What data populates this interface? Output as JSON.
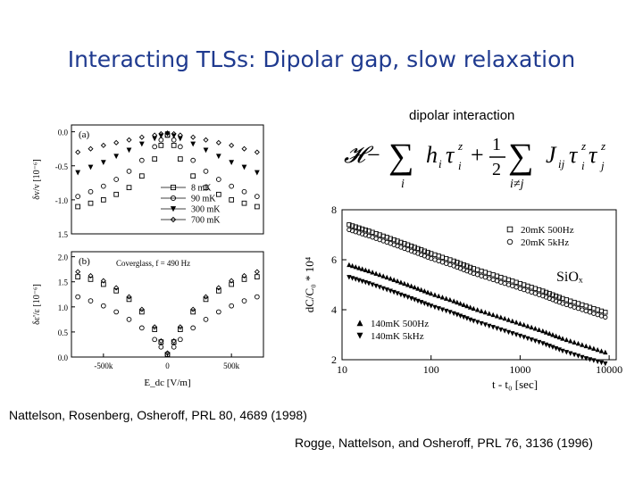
{
  "slide": {
    "title": "Interacting TLSs: Dipolar gap, slow relaxation",
    "subtitle": "dipolar interaction",
    "citation_1": "Nattelson, Rosenberg, Osheroff, PRL 80, 4689 (1998)",
    "citation_2": "Rogge, Nattelson, and Osheroff, PRL 76, 3136 (1996)"
  },
  "hamiltonian": {
    "H": "𝓗",
    "minus": "−",
    "sum1": "∑",
    "sub1": "i",
    "term1": "h",
    "term1_sub": "i",
    "tau": "τ",
    "tau_sub_i": "i",
    "sup_z": "z",
    "plus": "+",
    "frac_num": "1",
    "frac_den": "2",
    "sum2": "∑",
    "sub2": "i≠j",
    "J": "J",
    "J_sub": "ij",
    "tau_sub_j": "j"
  },
  "colors": {
    "title": "#1f3a8f",
    "text": "#000000",
    "grid": "#888888"
  },
  "chart_data": [
    {
      "type": "scatter",
      "panel": "(a)",
      "ylabel": "δv/v [10⁻⁶]",
      "yticks": [
        "0.0",
        "-0.5",
        "-1.0",
        "1.5"
      ],
      "x": [
        -700,
        -600,
        -500,
        -400,
        -300,
        -200,
        -100,
        -50,
        0,
        50,
        100,
        200,
        300,
        400,
        500,
        600,
        700
      ],
      "series": [
        {
          "name": "8 mK",
          "marker": "square",
          "values": [
            -1.1,
            -1.05,
            -1.0,
            -0.92,
            -0.82,
            -0.65,
            -0.4,
            -0.2,
            -0.05,
            -0.2,
            -0.4,
            -0.65,
            -0.82,
            -0.92,
            -1.0,
            -1.05,
            -1.1
          ]
        },
        {
          "name": "90 mK",
          "marker": "circle",
          "values": [
            -0.95,
            -0.88,
            -0.8,
            -0.7,
            -0.58,
            -0.42,
            -0.22,
            -0.12,
            -0.05,
            -0.12,
            -0.22,
            -0.42,
            -0.58,
            -0.7,
            -0.8,
            -0.88,
            -0.95
          ]
        },
        {
          "name": "300 mK",
          "marker": "triangle-down",
          "values": [
            -0.6,
            -0.52,
            -0.45,
            -0.36,
            -0.27,
            -0.18,
            -0.1,
            -0.06,
            -0.03,
            -0.06,
            -0.1,
            -0.18,
            -0.27,
            -0.36,
            -0.45,
            -0.52,
            -0.6
          ]
        },
        {
          "name": "700 mK",
          "marker": "diamond",
          "values": [
            -0.3,
            -0.25,
            -0.2,
            -0.16,
            -0.12,
            -0.08,
            -0.05,
            -0.03,
            -0.02,
            -0.03,
            -0.05,
            -0.08,
            -0.12,
            -0.16,
            -0.2,
            -0.25,
            -0.3
          ]
        }
      ],
      "ylim": [
        -1.5,
        0.1
      ]
    },
    {
      "type": "scatter",
      "panel": "(b)",
      "annotation": "Coverglass, f = 490 Hz",
      "ylabel": "δε'/ε [10⁻⁶]",
      "xlabel": "E_dc [V/m]",
      "yticks": [
        "2.0",
        "1.5",
        "1.0",
        "0.5",
        "0.0"
      ],
      "xticks": [
        "-500k",
        "0",
        "500k"
      ],
      "x": [
        -700,
        -600,
        -500,
        -400,
        -300,
        -200,
        -100,
        -50,
        0,
        50,
        100,
        200,
        300,
        400,
        500,
        600,
        700
      ],
      "series": [
        {
          "name": "8 mK",
          "marker": "square",
          "values": [
            1.6,
            1.55,
            1.45,
            1.32,
            1.15,
            0.9,
            0.55,
            0.3,
            0.05,
            0.3,
            0.55,
            0.9,
            1.15,
            1.32,
            1.45,
            1.55,
            1.6
          ]
        },
        {
          "name": "90 mK",
          "marker": "circle",
          "values": [
            1.2,
            1.12,
            1.02,
            0.9,
            0.75,
            0.58,
            0.35,
            0.2,
            0.05,
            0.2,
            0.35,
            0.58,
            0.75,
            0.9,
            1.02,
            1.12,
            1.2
          ]
        },
        {
          "name": "300 mK",
          "marker": "diamond",
          "values": [
            1.7,
            1.62,
            1.52,
            1.38,
            1.2,
            0.95,
            0.6,
            0.32,
            0.08,
            0.32,
            0.6,
            0.95,
            1.2,
            1.38,
            1.52,
            1.62,
            1.7
          ]
        }
      ],
      "ylim": [
        0,
        2.1
      ]
    },
    {
      "type": "scatter",
      "xscale": "log",
      "xlabel": "t - t₀ [sec]",
      "ylabel": "dC/C₀ * 10⁴",
      "annotation": "SiOₓ",
      "xticks": [
        "10",
        "100",
        "1000",
        "10000"
      ],
      "yticks": [
        "8",
        "6",
        "4",
        "2"
      ],
      "xlim": [
        10,
        12000
      ],
      "ylim": [
        2,
        8
      ],
      "x": [
        12,
        20,
        35,
        60,
        100,
        180,
        300,
        550,
        1000,
        1800,
        3000,
        5500,
        10000
      ],
      "series": [
        {
          "name": "20mK 500Hz",
          "marker": "square",
          "values": [
            7.4,
            7.15,
            6.85,
            6.55,
            6.25,
            5.95,
            5.65,
            5.35,
            5.05,
            4.75,
            4.45,
            4.15,
            3.85
          ]
        },
        {
          "name": "20mK 5kHz",
          "marker": "circle",
          "values": [
            7.2,
            6.95,
            6.65,
            6.35,
            6.05,
            5.75,
            5.45,
            5.15,
            4.85,
            4.55,
            4.25,
            3.95,
            3.65
          ]
        },
        {
          "name": "140mK 500Hz",
          "marker": "triangle-up",
          "values": [
            5.8,
            5.55,
            5.25,
            4.95,
            4.65,
            4.35,
            4.05,
            3.75,
            3.45,
            3.15,
            2.85,
            2.55,
            2.25
          ]
        },
        {
          "name": "140mK 5kHz",
          "marker": "triangle-down",
          "values": [
            5.3,
            5.05,
            4.75,
            4.45,
            4.15,
            3.85,
            3.55,
            3.25,
            2.95,
            2.65,
            2.35,
            2.05,
            1.8
          ]
        }
      ]
    }
  ]
}
